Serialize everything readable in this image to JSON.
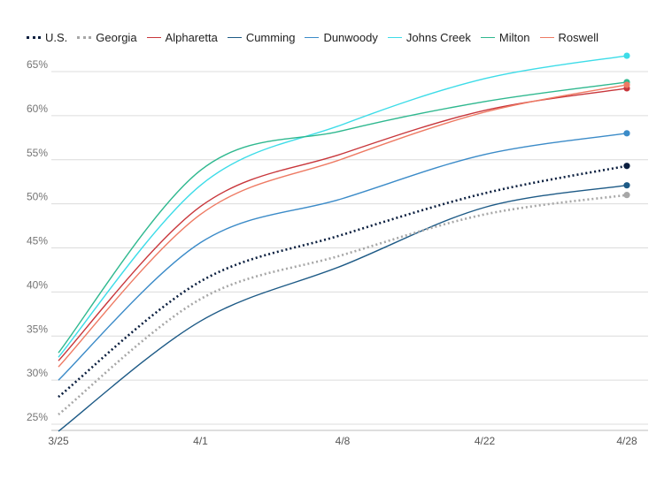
{
  "chart_data": {
    "type": "line",
    "title": "",
    "xlabel": "",
    "ylabel": "",
    "x": [
      "3/25",
      "4/1",
      "4/8",
      "4/22",
      "4/28"
    ],
    "ylim": [
      24.5,
      68
    ],
    "yticks": [
      25,
      30,
      35,
      40,
      45,
      50,
      55,
      60,
      65
    ],
    "y_tick_suffix": "%",
    "grid": "horizontal",
    "legend_position": "top-left",
    "series": [
      {
        "name": "U.S.",
        "color": "#0b1f3f",
        "style": "dotted",
        "values": [
          28.1,
          41.2,
          46.5,
          51.2,
          54.3
        ]
      },
      {
        "name": "Georgia",
        "color": "#a7a7a7",
        "style": "dotted",
        "values": [
          26.1,
          39.2,
          44.2,
          48.8,
          51.0
        ]
      },
      {
        "name": "Alpharetta",
        "color": "#c8363b",
        "style": "solid",
        "values": [
          32.2,
          49.7,
          55.7,
          60.6,
          63.1
        ]
      },
      {
        "name": "Cumming",
        "color": "#1d5a86",
        "style": "solid",
        "values": [
          24.2,
          36.7,
          43.0,
          49.6,
          52.1
        ]
      },
      {
        "name": "Dunwoody",
        "color": "#3b8bc8",
        "style": "solid",
        "values": [
          30.0,
          45.6,
          50.6,
          55.6,
          58.0
        ]
      },
      {
        "name": "Johns Creek",
        "color": "#3ddce8",
        "style": "solid",
        "values": [
          32.6,
          52.1,
          59.0,
          64.2,
          66.8
        ]
      },
      {
        "name": "Milton",
        "color": "#2fb88f",
        "style": "solid",
        "values": [
          33.1,
          53.8,
          58.3,
          61.6,
          63.8
        ]
      },
      {
        "name": "Roswell",
        "color": "#ee7a63",
        "style": "solid",
        "values": [
          31.5,
          48.8,
          55.1,
          60.4,
          63.5
        ]
      }
    ]
  }
}
